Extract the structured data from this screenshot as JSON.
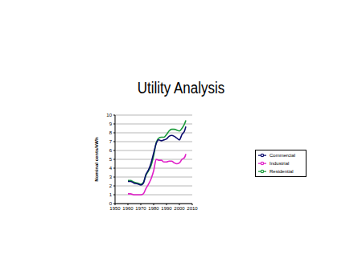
{
  "chart_data": {
    "type": "line",
    "title": "Utility Analysis",
    "y_label": "Nominal cents/kWh",
    "x": [
      1960,
      1962,
      1965,
      1968,
      1970,
      1972,
      1974,
      1976,
      1978,
      1980,
      1982,
      1984,
      1986,
      1988,
      1990,
      1992,
      1994,
      1996,
      1998,
      2000,
      2002,
      2004,
      2005
    ],
    "series": [
      {
        "name": "Residential",
        "color": "#1a9a3a",
        "values": [
          2.6,
          2.6,
          2.4,
          2.3,
          2.2,
          2.4,
          3.2,
          3.7,
          4.3,
          5.4,
          6.9,
          7.4,
          7.5,
          7.5,
          7.8,
          8.2,
          8.4,
          8.4,
          8.3,
          8.2,
          8.5,
          9.0,
          9.4
        ]
      },
      {
        "name": "Commercial",
        "color": "#0b0b6e",
        "values": [
          2.5,
          2.5,
          2.3,
          2.2,
          2.1,
          2.3,
          3.3,
          3.8,
          4.6,
          5.7,
          6.8,
          7.2,
          7.1,
          7.2,
          7.3,
          7.6,
          7.7,
          7.6,
          7.4,
          7.2,
          7.8,
          8.2,
          8.7
        ]
      },
      {
        "name": "Industrial",
        "color": "#e020c8",
        "values": [
          1.1,
          1.1,
          1.0,
          1.0,
          1.0,
          1.1,
          1.7,
          2.2,
          2.8,
          3.7,
          5.0,
          4.9,
          4.9,
          4.7,
          4.7,
          4.8,
          4.8,
          4.6,
          4.5,
          4.6,
          5.0,
          5.2,
          5.6
        ]
      }
    ],
    "xlim": [
      1950,
      2010
    ],
    "xticks": [
      1950,
      1960,
      1970,
      1980,
      1990,
      2000,
      2010
    ],
    "ylim": [
      0,
      10
    ],
    "yticks": [
      0,
      1,
      2,
      3,
      4,
      5,
      6,
      7,
      8,
      9,
      10
    ],
    "grid": true,
    "legend": "right"
  }
}
